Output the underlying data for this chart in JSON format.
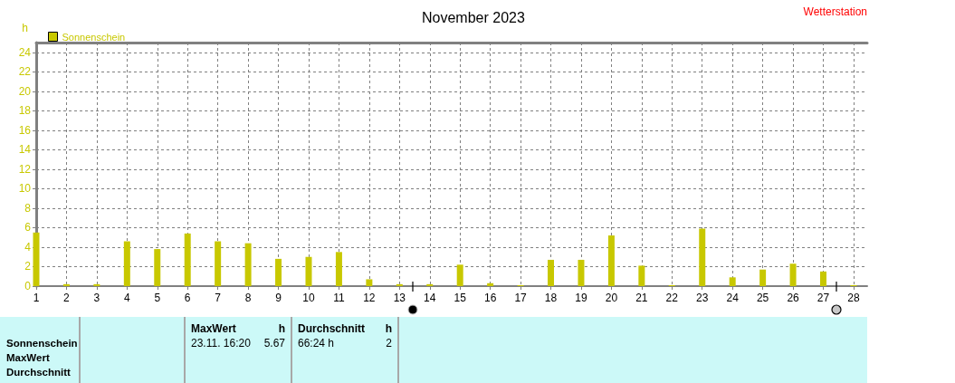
{
  "chart_data": {
    "type": "bar",
    "title": "November 2023",
    "ylabel": "h",
    "x": [
      1,
      2,
      3,
      4,
      5,
      6,
      7,
      8,
      9,
      10,
      11,
      12,
      13,
      14,
      15,
      16,
      17,
      18,
      19,
      20,
      21,
      22,
      23,
      24,
      25,
      26,
      27,
      28
    ],
    "series": [
      {
        "name": "Sonnenschein",
        "color": "#c8c800",
        "values": [
          5.5,
          0.2,
          0.2,
          4.6,
          3.8,
          5.4,
          4.6,
          4.4,
          2.8,
          3.0,
          3.5,
          0.7,
          0.2,
          0.2,
          2.2,
          0.3,
          0.1,
          2.7,
          2.7,
          5.2,
          2.1,
          0.1,
          5.9,
          0.9,
          1.7,
          2.3,
          1.5,
          0.1
        ]
      }
    ],
    "xlim": [
      1,
      28.45
    ],
    "xticks": [
      1,
      2,
      3,
      4,
      5,
      6,
      7,
      8,
      9,
      10,
      11,
      12,
      13,
      14,
      15,
      16,
      17,
      18,
      19,
      20,
      21,
      22,
      23,
      24,
      25,
      26,
      27,
      28
    ],
    "ylim": [
      0,
      25
    ],
    "yticks": [
      0,
      2,
      4,
      6,
      8,
      10,
      12,
      14,
      16,
      18,
      20,
      22,
      24
    ],
    "grid": true,
    "legend": "top left",
    "annotations": [
      "Wetterstation",
      "Sonnenschein",
      "MaxWert",
      "Durchschnitt",
      "MaxWert",
      "h",
      "23.11. 16:20",
      "5.67",
      "Durchschnitt",
      "h",
      "66:24 h",
      "2"
    ]
  }
}
